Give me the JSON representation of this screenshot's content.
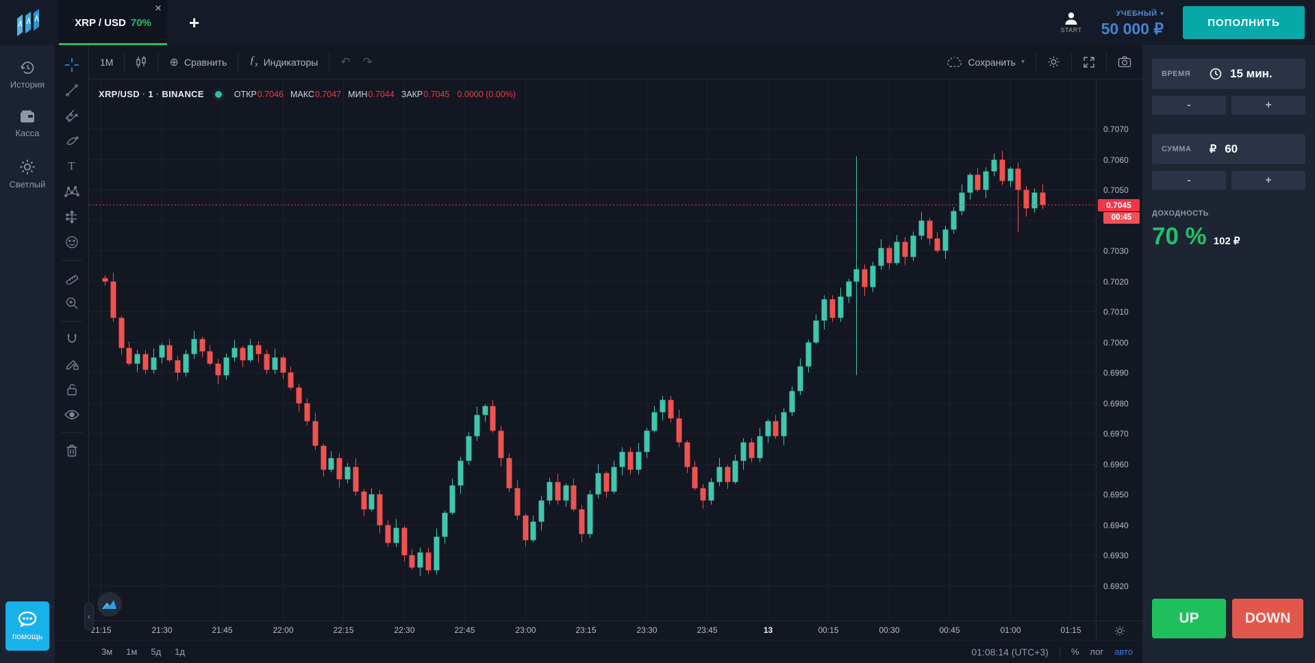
{
  "header": {
    "tab": {
      "symbol": "XRP / USD",
      "payout": "70%",
      "close_glyph": "✕"
    },
    "add_tab_glyph": "+",
    "start_label": "START",
    "account_type": "УЧЕБНЫЙ",
    "caret_down": "▾",
    "balance": "50 000 ₽",
    "deposit_label": "ПОПОЛНИТЬ"
  },
  "sidebar": {
    "items": [
      {
        "icon": "history-icon",
        "label": "История"
      },
      {
        "icon": "wallet-icon",
        "label": "Касса"
      },
      {
        "icon": "sun-icon",
        "label": "Светлый"
      }
    ],
    "help_label": "помощь"
  },
  "chart_toolbar": {
    "interval": "1М",
    "compare_glyph": "⊕",
    "compare": "Сравнить",
    "indicators": "Индикаторы",
    "undo_glyph": "↶",
    "redo_glyph": "↷",
    "save": "Сохранить",
    "save_caret": "▾"
  },
  "legend": {
    "symbol": "XRP/USD",
    "sep": "·",
    "interval": "1",
    "exchange": "BINANCE",
    "items": [
      {
        "label": "ОТКР",
        "value": "0.7046"
      },
      {
        "label": "МАКС",
        "value": "0.7047"
      },
      {
        "label": "МИН",
        "value": "0.7044"
      },
      {
        "label": "ЗАКР",
        "value": "0.7045"
      }
    ],
    "change": "0.0000 (0.00%)"
  },
  "trade_panel": {
    "time_label": "ВРЕМЯ",
    "time_value": "15 мин.",
    "amount_label": "СУММА",
    "currency_glyph": "₽",
    "amount_value": "60",
    "minus_glyph": "-",
    "plus_glyph": "+",
    "payout_label": "ДОХОДНОСТЬ",
    "payout_percent": "70 %",
    "payout_profit": "102 ₽",
    "up_label": "UP",
    "down_label": "DOWN"
  },
  "bottom_bar": {
    "ranges": [
      "3м",
      "1м",
      "5д",
      "1д"
    ],
    "clock": "01:08:14 (UTC+3)",
    "percent": "%",
    "log": "лог",
    "auto": "авто"
  },
  "collapse_glyph": "‹",
  "chart_data": {
    "type": "candlestick",
    "title": "XRP/USD · 1 · BINANCE",
    "interval": "1 minute",
    "note": "Candles estimated from pixels at ~2-minute resolution, 21:15 → 01:07 (UTC+3)",
    "x_labels": [
      {
        "m": 0,
        "t": "21:15"
      },
      {
        "m": 15,
        "t": "21:30"
      },
      {
        "m": 30,
        "t": "21:45"
      },
      {
        "m": 45,
        "t": "22:00"
      },
      {
        "m": 60,
        "t": "22:15"
      },
      {
        "m": 75,
        "t": "22:30"
      },
      {
        "m": 90,
        "t": "22:45"
      },
      {
        "m": 105,
        "t": "23:00"
      },
      {
        "m": 120,
        "t": "23:15"
      },
      {
        "m": 135,
        "t": "23:30"
      },
      {
        "m": 150,
        "t": "23:45"
      },
      {
        "m": 165,
        "t": "13",
        "date": true
      },
      {
        "m": 180,
        "t": "00:15"
      },
      {
        "m": 195,
        "t": "00:30"
      },
      {
        "m": 210,
        "t": "00:45"
      },
      {
        "m": 225,
        "t": "01:00"
      },
      {
        "m": 240,
        "t": "01:15"
      }
    ],
    "y_ticks": [
      0.707,
      0.706,
      0.705,
      0.704,
      0.703,
      0.702,
      0.701,
      0.7,
      0.699,
      0.698,
      0.697,
      0.696,
      0.695,
      0.694,
      0.693,
      0.692
    ],
    "y_tick_hidden": 0.704,
    "ylim": [
      0.6909,
      0.7086
    ],
    "current_price": 0.7045,
    "current_price_label": "0.7045",
    "countdown": "00:45",
    "minutes_per_candle": 2,
    "first_open": 0.7021,
    "closes": [
      0.702,
      0.7008,
      0.6998,
      0.6993,
      0.6996,
      0.6991,
      0.6995,
      0.6999,
      0.6994,
      0.699,
      0.6996,
      0.7001,
      0.6997,
      0.6993,
      0.6989,
      0.6995,
      0.6998,
      0.6994,
      0.6999,
      0.6996,
      0.6991,
      0.6995,
      0.699,
      0.6985,
      0.698,
      0.6974,
      0.6966,
      0.6958,
      0.6962,
      0.6955,
      0.6959,
      0.6951,
      0.6945,
      0.695,
      0.694,
      0.6934,
      0.6939,
      0.693,
      0.6926,
      0.6931,
      0.6925,
      0.6936,
      0.6944,
      0.6953,
      0.6961,
      0.6969,
      0.6976,
      0.6979,
      0.6971,
      0.6962,
      0.6952,
      0.6943,
      0.6935,
      0.6941,
      0.6948,
      0.6954,
      0.6948,
      0.6953,
      0.6945,
      0.6937,
      0.695,
      0.6957,
      0.6951,
      0.6959,
      0.6964,
      0.6958,
      0.6964,
      0.6971,
      0.6977,
      0.6981,
      0.6975,
      0.6967,
      0.6959,
      0.6952,
      0.6948,
      0.6954,
      0.6959,
      0.6954,
      0.6961,
      0.6967,
      0.6962,
      0.6969,
      0.6974,
      0.6969,
      0.6977,
      0.6984,
      0.6992,
      0.7,
      0.7007,
      0.7014,
      0.7008,
      0.7015,
      0.702,
      0.7024,
      0.7018,
      0.7025,
      0.7031,
      0.7026,
      0.7033,
      0.7028,
      0.7035,
      0.704,
      0.7034,
      0.703,
      0.7037,
      0.7043,
      0.7049,
      0.7055,
      0.705,
      0.7056,
      0.706,
      0.7053,
      0.7057,
      0.705,
      0.7044,
      0.7049,
      0.7045
    ],
    "overrides": [
      {
        "i": 0,
        "high": 0.7022
      },
      {
        "i": 93,
        "high": 0.7061,
        "low": 0.6989
      },
      {
        "i": 110,
        "high": 0.7062
      },
      {
        "i": 113,
        "low": 0.7036
      }
    ],
    "colors": {
      "candle_up": "#3fc6ad",
      "candle_down": "#f0524e",
      "price_line": "#f23645",
      "grid": "#1b2130",
      "background": "#131722",
      "up_button": "#1fc05c",
      "down_button": "#e2574c",
      "payout_green": "#21c16b",
      "accent_blue": "#2f7de1",
      "balance_blue": "#3f86cf",
      "deposit_teal": "#07a8a8",
      "help_blue": "#18b2ea"
    }
  }
}
